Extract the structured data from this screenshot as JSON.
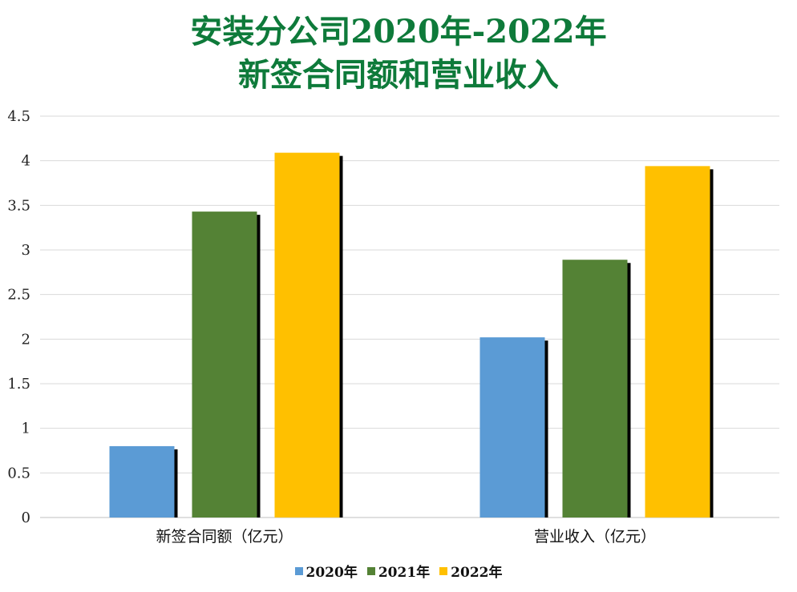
{
  "chart_data": {
    "type": "bar",
    "title_line1": "安装分公司2020年-2022年",
    "title_line2": "新签合同额和营业收入",
    "categories": [
      "新签合同额（亿元）",
      "营业收入（亿元）"
    ],
    "series": [
      {
        "name": "2020年",
        "values": [
          0.8,
          2.02
        ],
        "color": "#5b9bd5"
      },
      {
        "name": "2021年",
        "values": [
          3.43,
          2.89
        ],
        "color": "#548235"
      },
      {
        "name": "2022年",
        "values": [
          4.09,
          3.94
        ],
        "color": "#ffc000"
      }
    ],
    "ylim": [
      0,
      4.5
    ],
    "yticks": [
      "0",
      "0.5",
      "1",
      "1.5",
      "2",
      "2.5",
      "3",
      "3.5",
      "4",
      "4.5"
    ],
    "grid": true,
    "legend_position": "bottom"
  }
}
